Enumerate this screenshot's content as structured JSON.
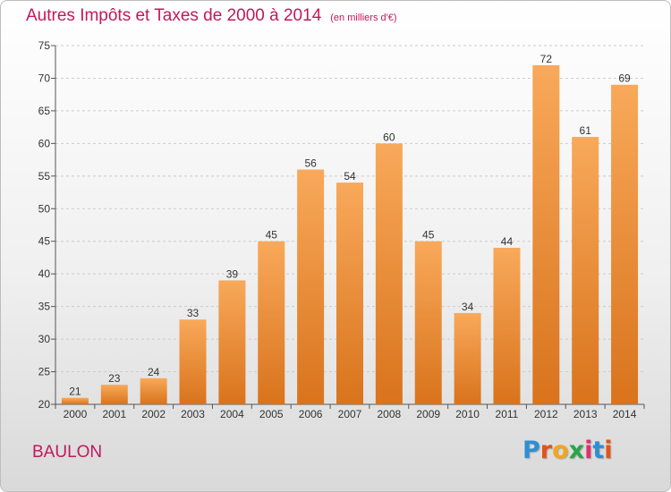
{
  "header": {
    "title": "Autres Impôts et Taxes de 2000 à 2014",
    "unit": "(en milliers d'€)"
  },
  "footer": {
    "place": "BAULON",
    "logo_letters": [
      "P",
      "r",
      "o",
      "x",
      "i",
      "t",
      "i"
    ]
  },
  "colors": {
    "title": "#c2185b",
    "bar_top": "#f8a95a",
    "bar_bottom": "#d9731c",
    "grid": "#cccccc"
  },
  "chart_data": {
    "type": "bar",
    "title": "Autres Impôts et Taxes de 2000 à 2014",
    "subtitle": "(en milliers d'€)",
    "xlabel": "",
    "ylabel": "",
    "categories": [
      "2000",
      "2001",
      "2002",
      "2003",
      "2004",
      "2005",
      "2006",
      "2007",
      "2008",
      "2009",
      "2010",
      "2011",
      "2012",
      "2013",
      "2014"
    ],
    "values": [
      21,
      23,
      24,
      33,
      39,
      45,
      56,
      54,
      60,
      45,
      34,
      44,
      72,
      61,
      69
    ],
    "ylim": [
      20,
      75
    ],
    "yticks": [
      20,
      25,
      30,
      35,
      40,
      45,
      50,
      55,
      60,
      65,
      70,
      75
    ],
    "grid": "horizontal dashed",
    "data_labels": true
  }
}
